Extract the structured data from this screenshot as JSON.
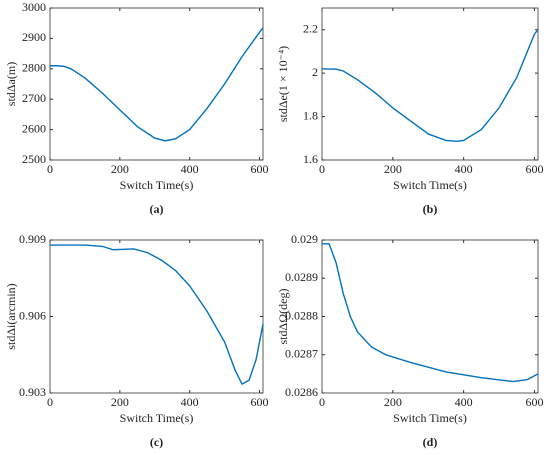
{
  "chart_data": [
    {
      "type": "line",
      "xlabel": "Switch Time(s)",
      "ylabel": "stdΔa(m)",
      "caption": "(a)",
      "xlim": [
        0,
        610
      ],
      "xticks": [
        0,
        200,
        400,
        600
      ],
      "ylim": [
        2500,
        3000
      ],
      "yticks": [
        2500,
        2600,
        2700,
        2800,
        2900,
        3000
      ],
      "x": [
        0,
        20,
        40,
        60,
        100,
        150,
        200,
        250,
        300,
        330,
        360,
        400,
        450,
        500,
        550,
        600,
        610
      ],
      "series": [
        {
          "color": "#0072bd",
          "values": [
            2810,
            2810,
            2808,
            2800,
            2770,
            2720,
            2665,
            2610,
            2572,
            2563,
            2570,
            2600,
            2670,
            2750,
            2840,
            2920,
            2935
          ]
        }
      ]
    },
    {
      "type": "line",
      "xlabel": "Switch Time(s)",
      "ylabel": "stdΔe(1 × 10⁻⁴)",
      "caption": "(b)",
      "xlim": [
        0,
        610
      ],
      "xticks": [
        0,
        200,
        400,
        600
      ],
      "ylim": [
        1.6,
        2.3
      ],
      "yticks": [
        1.6,
        1.8,
        2,
        2.2
      ],
      "x": [
        0,
        40,
        60,
        100,
        150,
        200,
        250,
        300,
        350,
        380,
        400,
        450,
        500,
        550,
        600,
        610
      ],
      "series": [
        {
          "color": "#0072bd",
          "values": [
            2.02,
            2.018,
            2.01,
            1.97,
            1.91,
            1.84,
            1.78,
            1.72,
            1.69,
            1.686,
            1.69,
            1.74,
            1.84,
            1.98,
            2.18,
            2.2
          ]
        }
      ]
    },
    {
      "type": "line",
      "xlabel": "Switch Time(s)",
      "ylabel": "stdΔi(arcmin)",
      "caption": "(c)",
      "xlim": [
        0,
        610
      ],
      "xticks": [
        0,
        200,
        400,
        600
      ],
      "ylim": [
        0.903,
        0.909
      ],
      "yticks": [
        0.903,
        0.906,
        0.909
      ],
      "x": [
        0,
        100,
        150,
        180,
        240,
        280,
        320,
        360,
        400,
        450,
        500,
        530,
        550,
        570,
        590,
        610
      ],
      "series": [
        {
          "color": "#0072bd",
          "values": [
            0.9088,
            0.9088,
            0.90875,
            0.90862,
            0.90865,
            0.9085,
            0.9082,
            0.9078,
            0.9072,
            0.9062,
            0.905,
            0.9039,
            0.90335,
            0.9035,
            0.9043,
            0.9057
          ]
        }
      ]
    },
    {
      "type": "line",
      "xlabel": "Switch Time(s)",
      "ylabel": "stdΔΩ(deg)",
      "caption": "(d)",
      "xlim": [
        0,
        610
      ],
      "xticks": [
        0,
        200,
        400,
        600
      ],
      "ylim": [
        0.0286,
        0.029
      ],
      "yticks": [
        0.0286,
        0.0287,
        0.0288,
        0.0289,
        0.029
      ],
      "x": [
        0,
        20,
        40,
        60,
        80,
        100,
        140,
        180,
        250,
        350,
        450,
        540,
        580,
        610
      ],
      "series": [
        {
          "color": "#0072bd",
          "values": [
            0.02899,
            0.02899,
            0.02894,
            0.02886,
            0.0288,
            0.02876,
            0.02872,
            0.0287,
            0.02868,
            0.028655,
            0.02864,
            0.02863,
            0.028635,
            0.02865
          ]
        }
      ]
    }
  ]
}
